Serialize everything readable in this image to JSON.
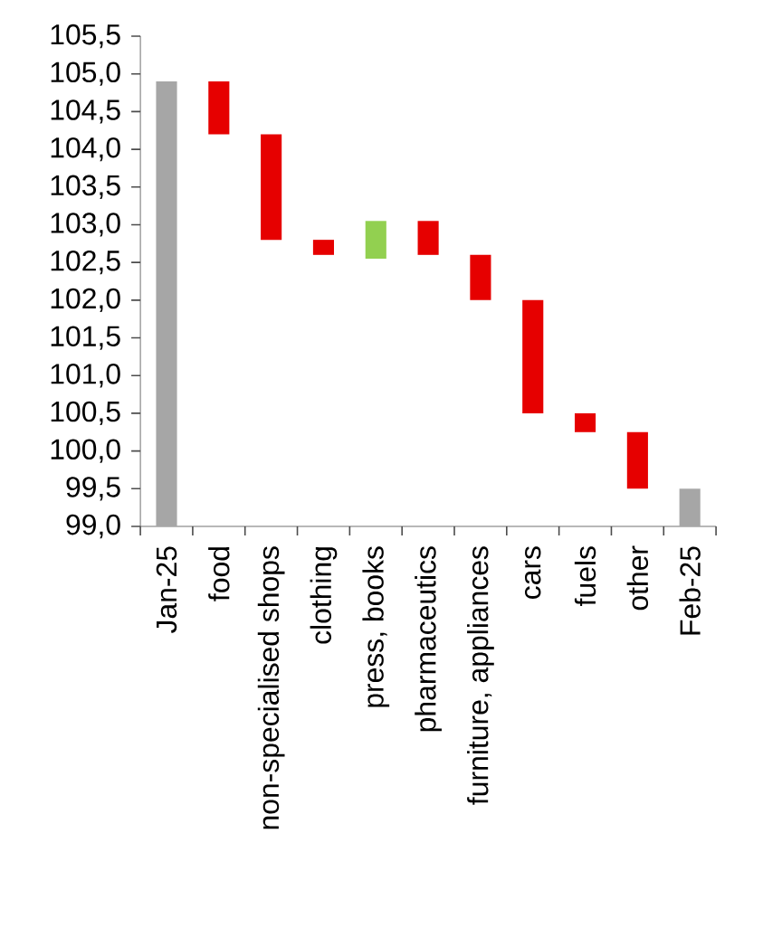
{
  "chart_data": {
    "type": "bar",
    "categories": [
      "Jan-25",
      "food",
      "non-specialised shops",
      "clothing",
      "press, books",
      "pharmaceutics",
      "furniture, appliances",
      "cars",
      "fuels",
      "other",
      "Feb-25"
    ],
    "base": [
      99.0,
      104.9,
      104.2,
      102.8,
      102.55,
      103.05,
      102.6,
      102.0,
      100.5,
      100.25,
      99.0
    ],
    "values": [
      5.9,
      -0.7,
      -1.4,
      -0.2,
      0.5,
      -0.45,
      -0.6,
      -1.5,
      -0.25,
      -0.75,
      0.5
    ],
    "colors": [
      "#a6a6a6",
      "#e60000",
      "#e60000",
      "#e60000",
      "#92d050",
      "#e60000",
      "#e60000",
      "#e60000",
      "#e60000",
      "#e60000",
      "#a6a6a6"
    ],
    "ylim": [
      99.0,
      105.5
    ],
    "yticks": [
      {
        "value": 99.0,
        "label": "99,0"
      },
      {
        "value": 99.5,
        "label": "99,5"
      },
      {
        "value": 100.0,
        "label": "100,0"
      },
      {
        "value": 100.5,
        "label": "100,5"
      },
      {
        "value": 101.0,
        "label": "101,0"
      },
      {
        "value": 101.5,
        "label": "101,5"
      },
      {
        "value": 102.0,
        "label": "102,0"
      },
      {
        "value": 102.5,
        "label": "102,5"
      },
      {
        "value": 103.0,
        "label": "103,0"
      },
      {
        "value": 103.5,
        "label": "103,5"
      },
      {
        "value": 104.0,
        "label": "104,0"
      },
      {
        "value": 104.5,
        "label": "104,5"
      },
      {
        "value": 105.0,
        "label": "105,0"
      },
      {
        "value": 105.5,
        "label": "105,5"
      }
    ]
  }
}
